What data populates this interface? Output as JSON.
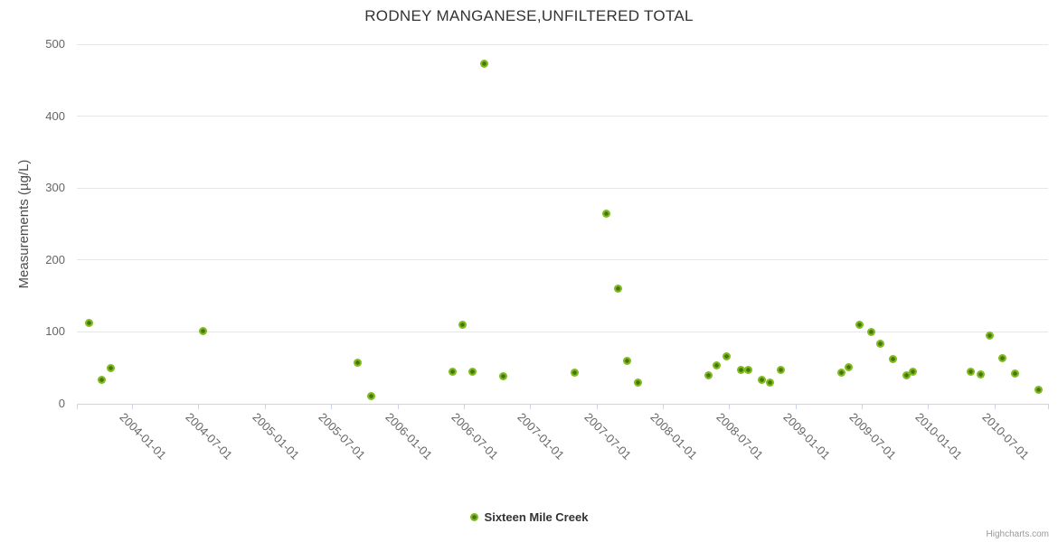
{
  "credits": "Highcharts.com",
  "colors": {
    "marker_outer": "#80ba20",
    "marker_inner": "#44790a",
    "grid": "#e6e6e6",
    "axis_line": "#ccd6eb",
    "title_text": "#333333",
    "label_text": "#666666"
  },
  "chart_data": {
    "type": "scatter",
    "title": "RODNEY MANGANESE,UNFILTERED TOTAL",
    "xlabel": "",
    "ylabel": "Measurements (µg/L)",
    "ylim": [
      0,
      500
    ],
    "y_ticks": [
      0,
      100,
      200,
      300,
      400,
      500
    ],
    "xlim": [
      "2003-08-01",
      "2010-11-27"
    ],
    "x_ticks": [
      "2004-01-01",
      "2004-07-01",
      "2005-01-01",
      "2005-07-01",
      "2006-01-01",
      "2006-07-01",
      "2007-01-01",
      "2007-07-01",
      "2008-01-01",
      "2008-07-01",
      "2009-01-01",
      "2009-07-01",
      "2010-01-01",
      "2010-07-01"
    ],
    "grid": true,
    "legend_position": "bottom",
    "series": [
      {
        "name": "Sixteen Mile Creek",
        "color": "#80ba20",
        "points": [
          [
            "2003-09-05",
            113
          ],
          [
            "2003-10-08",
            33
          ],
          [
            "2003-11-02",
            50
          ],
          [
            "2004-07-13",
            101
          ],
          [
            "2005-09-14",
            57
          ],
          [
            "2005-10-21",
            11
          ],
          [
            "2006-05-31",
            44
          ],
          [
            "2006-06-27",
            110
          ],
          [
            "2006-07-25",
            44
          ],
          [
            "2006-08-28",
            473
          ],
          [
            "2006-10-19",
            38
          ],
          [
            "2007-05-01",
            43
          ],
          [
            "2007-07-27",
            265
          ],
          [
            "2007-08-29",
            160
          ],
          [
            "2007-09-25",
            60
          ],
          [
            "2007-10-23",
            30
          ],
          [
            "2008-05-06",
            39
          ],
          [
            "2008-05-27",
            53
          ],
          [
            "2008-06-25",
            66
          ],
          [
            "2008-08-04",
            47
          ],
          [
            "2008-08-24",
            47
          ],
          [
            "2008-10-01",
            33
          ],
          [
            "2008-10-23",
            30
          ],
          [
            "2008-11-22",
            47
          ],
          [
            "2009-05-05",
            43
          ],
          [
            "2009-05-25",
            51
          ],
          [
            "2009-06-26",
            110
          ],
          [
            "2009-07-28",
            100
          ],
          [
            "2009-08-22",
            84
          ],
          [
            "2009-09-27",
            62
          ],
          [
            "2009-11-03",
            39
          ],
          [
            "2009-11-21",
            45
          ],
          [
            "2010-04-28",
            44
          ],
          [
            "2010-05-23",
            41
          ],
          [
            "2010-06-19",
            95
          ],
          [
            "2010-07-24",
            63
          ],
          [
            "2010-08-28",
            42
          ],
          [
            "2010-11-02",
            20
          ]
        ]
      }
    ]
  }
}
